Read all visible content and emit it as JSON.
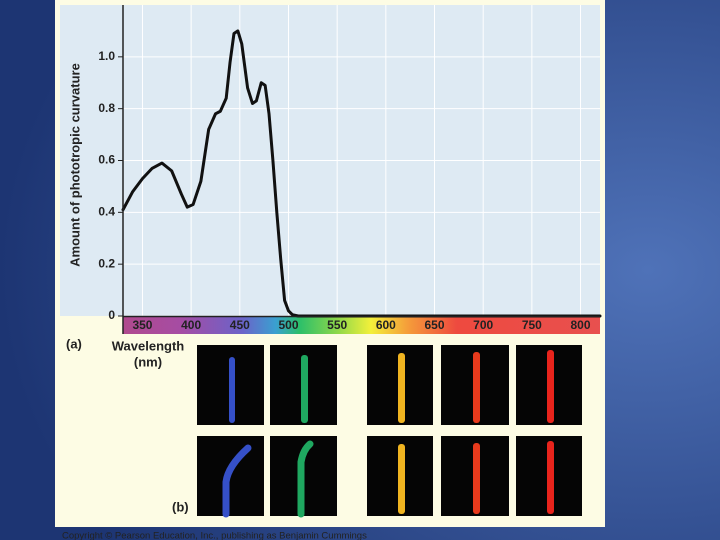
{
  "chart_data": {
    "type": "line",
    "y_label": "Amount of phototropic curvature",
    "x_label_line1": "Wavelength",
    "x_label_line2": "(nm)",
    "panel_a": "(a)",
    "panel_b": "(b)",
    "copyright": "Copyright © Pearson Education, Inc., publishing as Benjamin Cummings",
    "x": [
      330,
      340,
      350,
      360,
      370,
      380,
      390,
      396,
      402,
      410,
      418,
      425,
      430,
      436,
      440,
      444,
      448,
      452,
      458,
      463,
      467,
      472,
      476,
      480,
      484,
      488,
      492,
      496,
      500,
      504,
      510,
      550,
      820
    ],
    "values": [
      0.41,
      0.48,
      0.53,
      0.57,
      0.59,
      0.56,
      0.47,
      0.42,
      0.43,
      0.52,
      0.72,
      0.78,
      0.79,
      0.84,
      0.98,
      1.09,
      1.1,
      1.05,
      0.88,
      0.82,
      0.83,
      0.9,
      0.89,
      0.78,
      0.6,
      0.4,
      0.22,
      0.06,
      0.02,
      0.005,
      0,
      0,
      0
    ],
    "color": "#111111",
    "xlim": [
      330,
      820
    ],
    "ylim": [
      0,
      1.2
    ],
    "xticks": [
      350,
      400,
      450,
      500,
      550,
      600,
      650,
      700,
      750,
      800
    ],
    "yticks": [
      0,
      0.2,
      0.4,
      0.6,
      0.8,
      {
        "value": 1,
        "label": "1.0"
      }
    ],
    "grid": true
  }
}
